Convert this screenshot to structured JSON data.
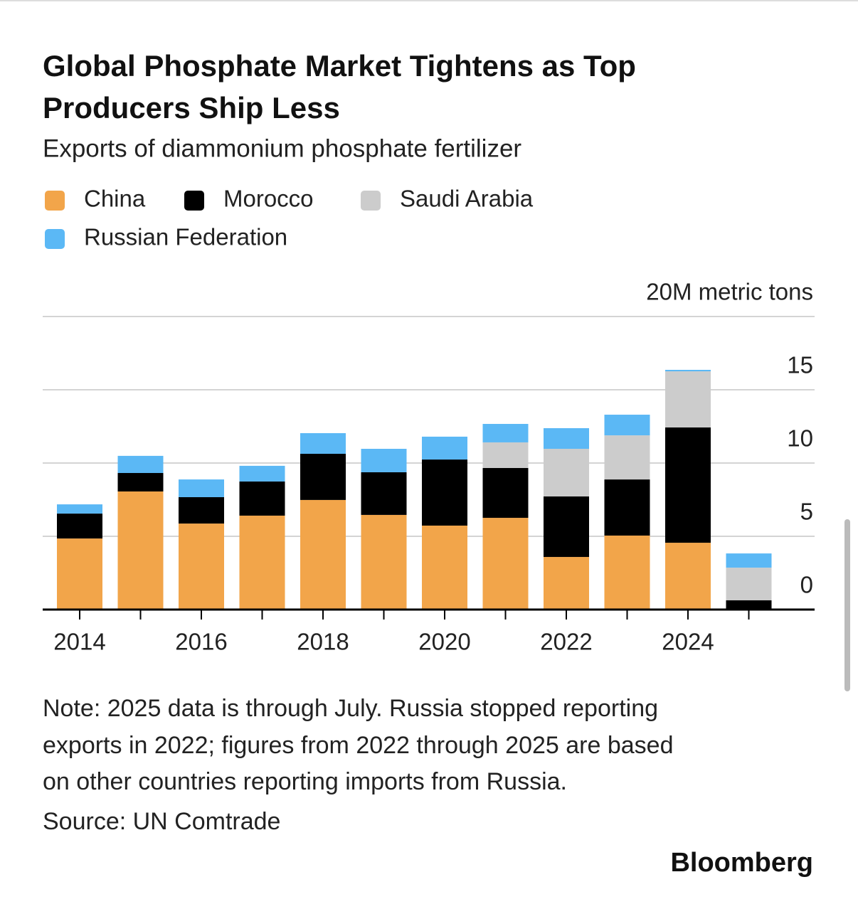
{
  "chart_data": {
    "type": "stacked-bar",
    "title": [
      "Global Phosphate Market Tightens as Top",
      "Producers Ship Less"
    ],
    "subtitle": "Exports of diammonium phosphate fertilizer",
    "categories": [
      "2014",
      null,
      "2016",
      null,
      "2018",
      null,
      "2020",
      null,
      "2022",
      null,
      "2024",
      null
    ],
    "series": [
      {
        "name": "China",
        "color": "#f2a54a",
        "values": [
          4.85,
          8.06,
          5.87,
          6.41,
          7.48,
          6.46,
          5.73,
          6.26,
          3.59,
          5.05,
          4.56,
          0
        ]
      },
      {
        "name": "Morocco",
        "color": "#000000",
        "values": [
          1.7,
          1.26,
          1.8,
          2.33,
          3.15,
          2.91,
          4.51,
          3.4,
          4.13,
          3.83,
          7.87,
          0.63
        ]
      },
      {
        "name": "Saudi Arabia",
        "color": "#cccccc",
        "values": [
          0,
          0,
          0,
          0,
          0,
          0,
          0,
          1.75,
          3.25,
          3.01,
          3.83,
          2.23
        ]
      },
      {
        "name": "Russian Federation",
        "color": "#5bb8f5",
        "values": [
          0.63,
          1.17,
          1.21,
          1.07,
          1.41,
          1.6,
          1.56,
          1.26,
          1.41,
          1.41,
          0.1,
          0.97
        ]
      }
    ],
    "ylim": [
      0,
      20
    ],
    "yticks": [
      0,
      5,
      10,
      15,
      {
        "value": 20,
        "label": "20M metric tons"
      }
    ],
    "grid": true,
    "notes": [
      "Note: 2025 data is through July. Russia stopped reporting",
      "exports in 2022; figures from 2022 through 2025 are based",
      "on other countries reporting imports from Russia."
    ],
    "source": "Source: UN Comtrade",
    "brand": "Bloomberg"
  }
}
